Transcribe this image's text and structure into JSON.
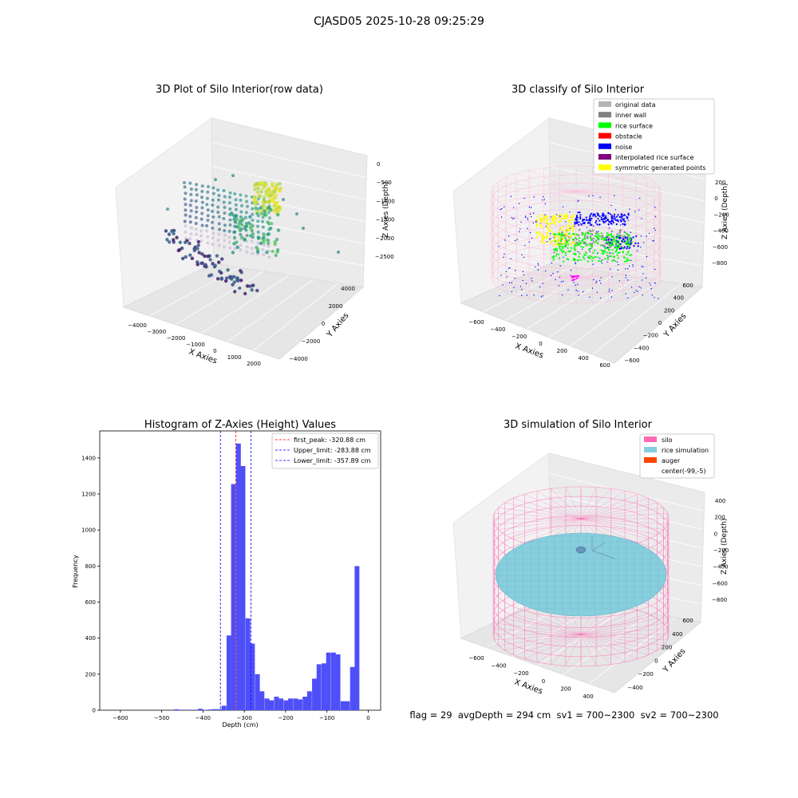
{
  "suptitle": "CJASD05 2025-10-28 09:25:29",
  "footer": "flag = 29  avgDepth = 294 cm  sv1 = 700~2300  sv2 = 700~2300",
  "colors": {
    "hist_bar": "#4f4ff9",
    "peak_line": "#ff0000",
    "limit_line": "#0000ff",
    "silo": "#ff69b4",
    "rice_simulation": "#87cedf",
    "auger": "#ff4500",
    "rice_surface": "#00ff00",
    "noise": "#0000ff",
    "inner_wall": "#808080",
    "symmetric": "#ffff00",
    "interpolated": "#800080",
    "original": "#b4b4b4",
    "obstacle": "#ff0000"
  },
  "chart_data": [
    {
      "type": "scatter",
      "subtype": "3d",
      "title": "3D Plot of Silo Interior(row data)",
      "xlabel": "X Axies",
      "ylabel": "Y Axies",
      "zlabel": "Z Axies (Depth)",
      "x_ticks": [
        "−4000",
        "−3000",
        "−2000",
        "−1000",
        "0",
        "1000",
        "2000"
      ],
      "y_ticks": [
        "−4000",
        "−2000",
        "0",
        "2000",
        "4000"
      ],
      "z_ticks": [
        "0",
        "−500",
        "−1000",
        "−1500",
        "−2000",
        "−2500"
      ],
      "xlim": [
        -4500,
        2500
      ],
      "ylim": [
        -4500,
        4500
      ],
      "zlim": [
        -3000,
        0
      ]
    },
    {
      "type": "scatter",
      "subtype": "3d",
      "title": "3D classify of Silo Interior",
      "xlabel": "X Axies",
      "ylabel": "Y Axies",
      "zlabel": "Z Axies (Depth)",
      "x_ticks": [
        "−600",
        "−400",
        "−200",
        "0",
        "200",
        "400",
        "600"
      ],
      "y_ticks": [
        "−600",
        "−400",
        "−200",
        "0",
        "200",
        "400",
        "600"
      ],
      "z_ticks": [
        "200",
        "0",
        "−200",
        "−400",
        "−600",
        "−800"
      ],
      "legend": [
        {
          "label": "original data",
          "color": "#b4b4b4"
        },
        {
          "label": "inner wall",
          "color": "#808080"
        },
        {
          "label": "rice surface",
          "color": "#00ff00"
        },
        {
          "label": "obstacle",
          "color": "#ff0000"
        },
        {
          "label": "noise",
          "color": "#0000ff"
        },
        {
          "label": "interpolated rice surface",
          "color": "#800080"
        },
        {
          "label": "symmetric generated points",
          "color": "#ffff00"
        }
      ],
      "legend_placement": "top-right"
    },
    {
      "type": "bar",
      "subtype": "histogram",
      "title": "Histogram of Z-Axies (Height) Values",
      "xlabel": "Depth (cm)",
      "ylabel": "Frequency",
      "xlim": [
        -650,
        30
      ],
      "ylim": [
        0,
        1550
      ],
      "x_ticks": [
        -600,
        -500,
        -400,
        -300,
        -200,
        -100,
        0
      ],
      "y_ticks": [
        0,
        200,
        400,
        600,
        800,
        1000,
        1200,
        1400
      ],
      "bin_width": 11.5,
      "bins": [
        [
          -470,
          5
        ],
        [
          -458,
          3
        ],
        [
          -447,
          0
        ],
        [
          -435,
          3
        ],
        [
          -424,
          0
        ],
        [
          -412,
          8
        ],
        [
          -401,
          2
        ],
        [
          -389,
          4
        ],
        [
          -378,
          6
        ],
        [
          -366,
          6
        ],
        [
          -355,
          25
        ],
        [
          -343,
          415
        ],
        [
          -332,
          1255
        ],
        [
          -320,
          1480
        ],
        [
          -309,
          1355
        ],
        [
          -297,
          510
        ],
        [
          -286,
          370
        ],
        [
          -274,
          200
        ],
        [
          -263,
          105
        ],
        [
          -251,
          65
        ],
        [
          -240,
          55
        ],
        [
          -228,
          75
        ],
        [
          -217,
          65
        ],
        [
          -205,
          55
        ],
        [
          -194,
          65
        ],
        [
          -182,
          65
        ],
        [
          -171,
          60
        ],
        [
          -159,
          75
        ],
        [
          -148,
          105
        ],
        [
          -136,
          175
        ],
        [
          -125,
          255
        ],
        [
          -113,
          260
        ],
        [
          -102,
          320
        ],
        [
          -90,
          320
        ],
        [
          -79,
          310
        ],
        [
          -67,
          50
        ],
        [
          -56,
          50
        ],
        [
          -44,
          240
        ],
        [
          -33,
          800
        ]
      ],
      "vlines": [
        {
          "x": -320.88,
          "color": "#ff0000",
          "label": "first_peak: -320.88 cm"
        },
        {
          "x": -283.88,
          "color": "#0000ff",
          "label": "Upper_limit: -283.88 cm"
        },
        {
          "x": -357.89,
          "color": "#0000ff",
          "label": "Lower_limit: -357.89 cm"
        }
      ],
      "legend_placement": "top-right"
    },
    {
      "type": "scatter",
      "subtype": "3d",
      "title": "3D simulation of Silo Interior",
      "xlabel": "X Axies",
      "ylabel": "Y Axies",
      "zlabel": "Z Axies (Depth)",
      "x_ticks": [
        "−600",
        "−400",
        "−200",
        "0",
        "200",
        "400"
      ],
      "y_ticks": [
        "−400",
        "−200",
        "0",
        "200",
        "400",
        "600"
      ],
      "z_ticks": [
        "400",
        "200",
        "0",
        "−200",
        "−400",
        "−600",
        "−800"
      ],
      "legend": [
        {
          "label": "silo",
          "color": "#ff69b4"
        },
        {
          "label": "rice simulation",
          "color": "#87cedf"
        },
        {
          "label": "auger",
          "color": "#ff4500"
        },
        {
          "label": "center(-99,-5)",
          "color": ""
        }
      ],
      "legend_placement": "top-right"
    }
  ]
}
